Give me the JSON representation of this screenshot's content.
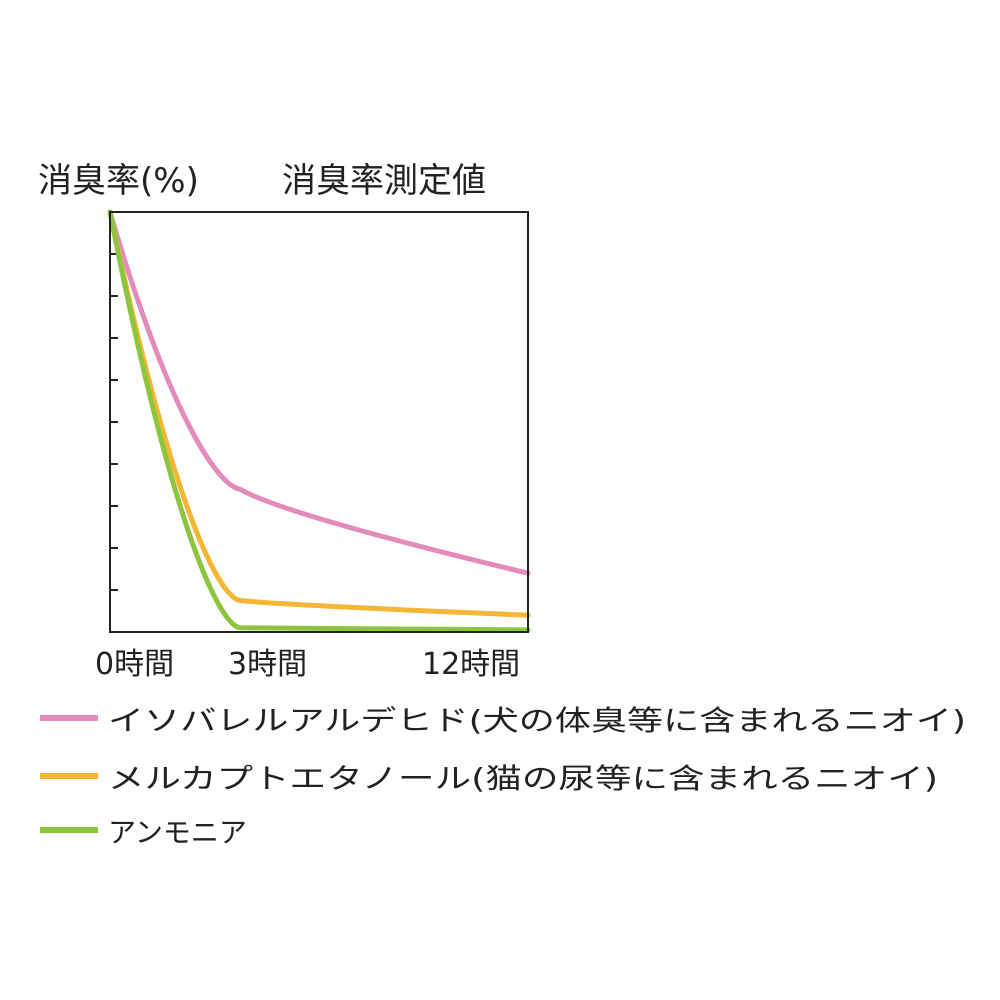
{
  "chart_data": {
    "type": "line",
    "title": "消臭率測定値",
    "ylabel": "消臭率(%)",
    "xlabel": "",
    "x_ticks": [
      "0時間",
      "3時間",
      "12時間"
    ],
    "y_tick_count": 10,
    "grid": false,
    "legend_position": "bottom",
    "series": [
      {
        "name": "イソバレルアルデヒド(犬の体臭等に含まれるニオイ)",
        "color": "#e38bbd",
        "points": [
          [
            0,
            100
          ],
          [
            3,
            34
          ],
          [
            12,
            14
          ]
        ]
      },
      {
        "name": "メルカプトエタノール(猫の尿等に含まれるニオイ)",
        "color": "#f5b535",
        "points": [
          [
            0,
            100
          ],
          [
            3,
            7.5
          ],
          [
            12,
            4
          ]
        ]
      },
      {
        "name": "アンモニア",
        "color": "#8cc63f",
        "points": [
          [
            0,
            100
          ],
          [
            3,
            1
          ],
          [
            12,
            0.5
          ]
        ]
      }
    ]
  }
}
